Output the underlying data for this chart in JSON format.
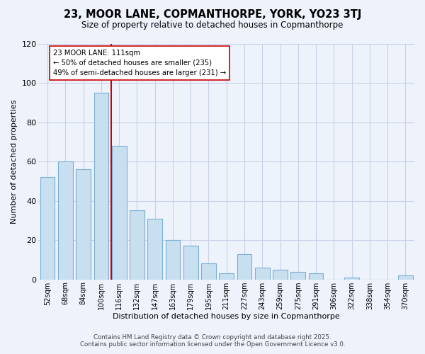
{
  "title": "23, MOOR LANE, COPMANTHORPE, YORK, YO23 3TJ",
  "subtitle": "Size of property relative to detached houses in Copmanthorpe",
  "xlabel": "Distribution of detached houses by size in Copmanthorpe",
  "ylabel": "Number of detached properties",
  "bar_labels": [
    "52sqm",
    "68sqm",
    "84sqm",
    "100sqm",
    "116sqm",
    "132sqm",
    "147sqm",
    "163sqm",
    "179sqm",
    "195sqm",
    "211sqm",
    "227sqm",
    "243sqm",
    "259sqm",
    "275sqm",
    "291sqm",
    "306sqm",
    "322sqm",
    "338sqm",
    "354sqm",
    "370sqm"
  ],
  "bar_values": [
    52,
    60,
    56,
    95,
    68,
    35,
    31,
    20,
    17,
    8,
    3,
    13,
    6,
    5,
    4,
    3,
    0,
    1,
    0,
    0,
    2
  ],
  "bar_color": "#c8dff0",
  "bar_edgecolor": "#7aafd4",
  "vline_color": "#cc0000",
  "vline_index": 3.55,
  "annotation_title": "23 MOOR LANE: 111sqm",
  "annotation_line1": "← 50% of detached houses are smaller (235)",
  "annotation_line2": "49% of semi-detached houses are larger (231) →",
  "annotation_box_color": "white",
  "annotation_box_edgecolor": "#cc0000",
  "ylim": [
    0,
    120
  ],
  "yticks": [
    0,
    20,
    40,
    60,
    80,
    100,
    120
  ],
  "footer_line1": "Contains HM Land Registry data © Crown copyright and database right 2025.",
  "footer_line2": "Contains public sector information licensed under the Open Government Licence v3.0.",
  "background_color": "#eef2fb",
  "grid_color": "#c8d0e8"
}
